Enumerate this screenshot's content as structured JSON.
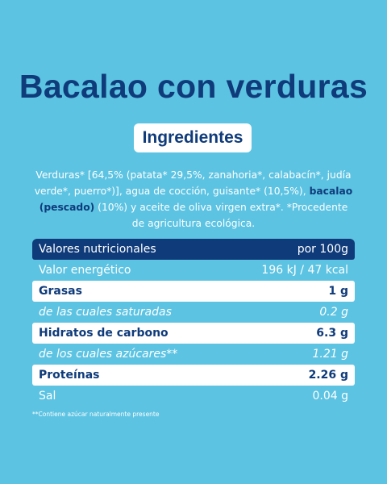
{
  "title": "Bacalao con verduras",
  "ingredients": {
    "heading": "Ingredientes",
    "segments": [
      {
        "text": "Verduras* [64,5% (patata* 29,5%, zanahoria*, calabacín*, judía verde*, puerro*)], agua de cocción, guisante* (10,5%), ",
        "bold": false
      },
      {
        "text": "bacalao (pescado)",
        "bold": true
      },
      {
        "text": " (10%) y aceite de oliva virgen extra*. *Procedente de agricultura ecológica.",
        "bold": false
      }
    ]
  },
  "table": {
    "header": [
      "Valores nutricionales",
      "por 100g"
    ],
    "rows": [
      [
        "Valor energético",
        "196 kJ / 47 kcal"
      ],
      [
        "Grasas",
        "1 g"
      ],
      [
        "de las cuales saturadas",
        "0.2 g"
      ],
      [
        "Hidratos de carbono",
        "6.3 g"
      ],
      [
        "de los cuales azúcares**",
        "1.21 g"
      ],
      [
        "Proteínas",
        "2.26 g"
      ],
      [
        "Sal",
        "0.04 g"
      ]
    ]
  },
  "footnote": "**Contiene azúcar naturalmente presente"
}
